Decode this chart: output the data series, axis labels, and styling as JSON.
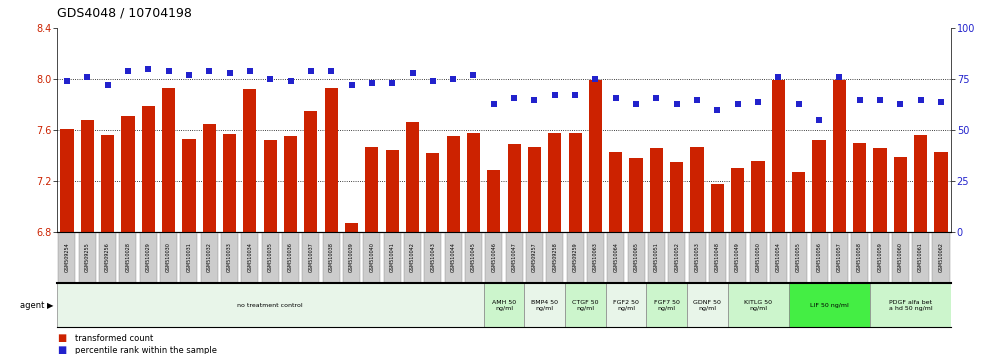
{
  "title": "GDS4048 / 10704198",
  "ylim_left": [
    6.8,
    8.4
  ],
  "ylim_right": [
    0,
    100
  ],
  "yticks_left": [
    6.8,
    7.2,
    7.6,
    8.0,
    8.4
  ],
  "yticks_right": [
    0,
    25,
    50,
    75,
    100
  ],
  "bar_color": "#cc2200",
  "dot_color": "#2222cc",
  "categories": [
    "GSM509254",
    "GSM509255",
    "GSM509256",
    "GSM510028",
    "GSM510029",
    "GSM510030",
    "GSM510031",
    "GSM510032",
    "GSM510033",
    "GSM510034",
    "GSM510035",
    "GSM510036",
    "GSM510037",
    "GSM510038",
    "GSM510039",
    "GSM510040",
    "GSM510041",
    "GSM510042",
    "GSM510043",
    "GSM510044",
    "GSM510045",
    "GSM510046",
    "GSM510047",
    "GSM509257",
    "GSM509258",
    "GSM509259",
    "GSM510063",
    "GSM510064",
    "GSM510065",
    "GSM510051",
    "GSM510052",
    "GSM510053",
    "GSM510048",
    "GSM510049",
    "GSM510050",
    "GSM510054",
    "GSM510055",
    "GSM510056",
    "GSM510057",
    "GSM510058",
    "GSM510059",
    "GSM510060",
    "GSM510061",
    "GSM510062"
  ],
  "bar_values": [
    7.61,
    7.68,
    7.56,
    7.71,
    7.79,
    7.93,
    7.53,
    7.65,
    7.57,
    7.92,
    7.52,
    7.55,
    7.75,
    7.93,
    6.87,
    7.47,
    7.44,
    7.66,
    7.42,
    7.55,
    7.58,
    7.29,
    7.49,
    7.47,
    7.58,
    7.58,
    7.99,
    7.43,
    7.38,
    7.46,
    7.35,
    7.47,
    7.18,
    7.3,
    7.36,
    7.99,
    7.27,
    7.52,
    7.99,
    7.5,
    7.46,
    7.39,
    7.56,
    7.43
  ],
  "percentile_values": [
    74,
    76,
    72,
    79,
    80,
    79,
    77,
    79,
    78,
    79,
    75,
    74,
    79,
    79,
    72,
    73,
    73,
    78,
    74,
    75,
    77,
    63,
    66,
    65,
    67,
    67,
    75,
    66,
    63,
    66,
    63,
    65,
    60,
    63,
    64,
    76,
    63,
    55,
    76,
    65,
    65,
    63,
    65,
    64
  ],
  "agent_groups": [
    {
      "label": "no treatment control",
      "start": 0,
      "end": 21,
      "color": "#e8f5e9"
    },
    {
      "label": "AMH 50\nng/ml",
      "start": 21,
      "end": 23,
      "color": "#ccf5cc"
    },
    {
      "label": "BMP4 50\nng/ml",
      "start": 23,
      "end": 25,
      "color": "#e8f5e9"
    },
    {
      "label": "CTGF 50\nng/ml",
      "start": 25,
      "end": 27,
      "color": "#ccf5cc"
    },
    {
      "label": "FGF2 50\nng/ml",
      "start": 27,
      "end": 29,
      "color": "#e8f5e9"
    },
    {
      "label": "FGF7 50\nng/ml",
      "start": 29,
      "end": 31,
      "color": "#ccf5cc"
    },
    {
      "label": "GDNF 50\nng/ml",
      "start": 31,
      "end": 33,
      "color": "#e8f5e9"
    },
    {
      "label": "KITLG 50\nng/ml",
      "start": 33,
      "end": 36,
      "color": "#ccf5cc"
    },
    {
      "label": "LIF 50 ng/ml",
      "start": 36,
      "end": 40,
      "color": "#44ee44"
    },
    {
      "label": "PDGF alfa bet\na hd 50 ng/ml",
      "start": 40,
      "end": 44,
      "color": "#ccf5cc"
    }
  ]
}
